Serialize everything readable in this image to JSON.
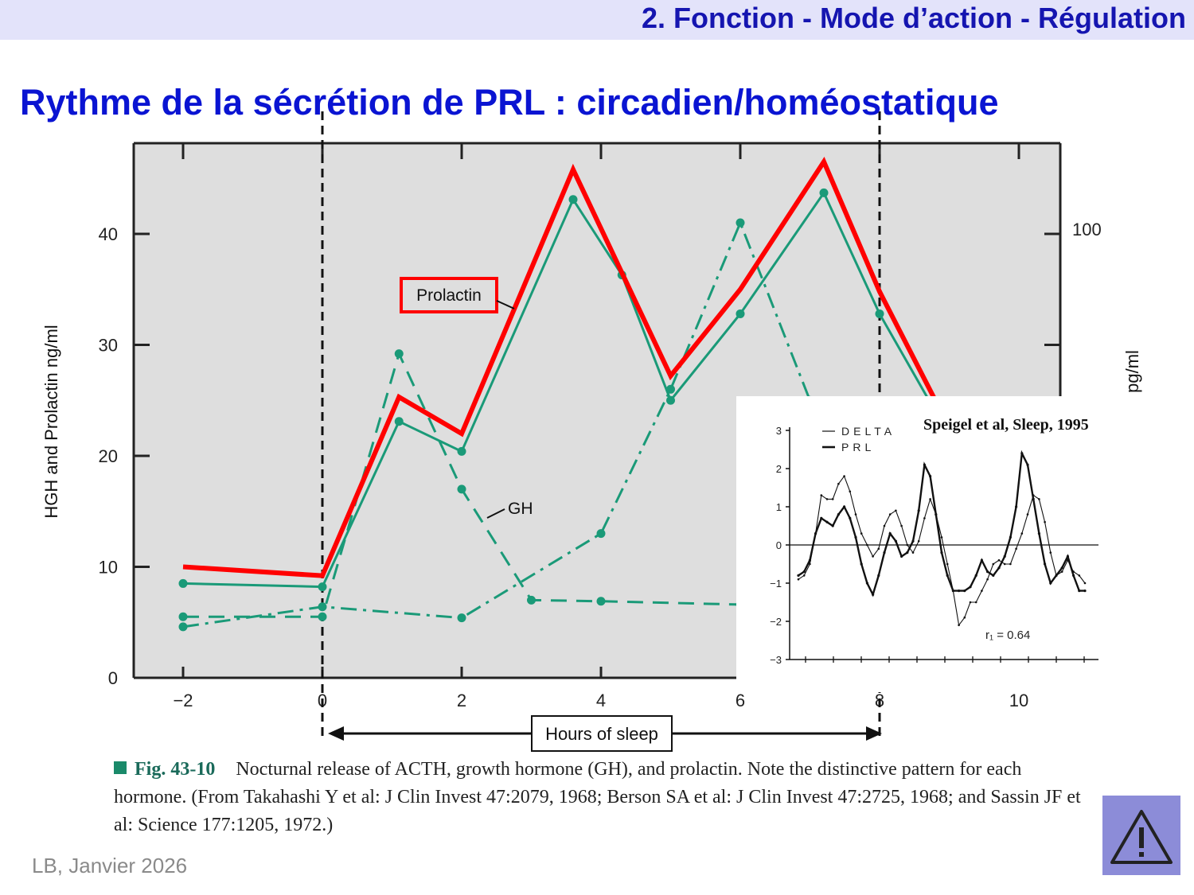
{
  "header": {
    "title": "2. Fonction - Mode d’action - Régulation"
  },
  "slide": {
    "title": "Rythme de la sécrétion de PRL : circadien/homéostatique",
    "footer": "LB, Janvier 2026"
  },
  "caption": {
    "fig_number": "Fig. 43-10",
    "text": "Nocturnal release of ACTH, growth hormone (GH), and prolactin. Note the distinctive pattern for each hormone. (From Takahashi Y et al: J Clin Invest 47:2079, 1968; Berson SA et al: J Clin Invest 47:2725, 1968; and Sassin JF et al: Science 177:1205, 1972.)"
  },
  "colors": {
    "teal": "#1a9a78",
    "red": "#ff0000",
    "panel": "#dedede",
    "title_blue": "#0a14d2"
  },
  "icons": {
    "warning": "warning-icon"
  },
  "chart_data": [
    {
      "type": "line",
      "xlim": [
        -2,
        11
      ],
      "ylim": [
        0,
        48
      ],
      "x_ticks": [
        -2,
        0,
        2,
        4,
        6,
        8,
        10
      ],
      "x_tick_labels": [
        "−2",
        "0",
        "2",
        "4",
        "6",
        "8",
        "10"
      ],
      "y_ticks": [
        0,
        10,
        20,
        30,
        40
      ],
      "y_tick_labels": [
        "0",
        "10",
        "20",
        "30",
        "40"
      ],
      "ylabel": "HGH and Prolactin ng/ml",
      "y2label": "ACTH pg/ml",
      "y2_tick_labels": [
        "100"
      ],
      "y2_ticks": [
        40
      ],
      "xlabel": "Hours of sleep",
      "sleep_window": [
        0,
        8
      ],
      "annotations": {
        "prolactin_label": "Prolactin",
        "gh_label": "GH"
      },
      "series": [
        {
          "name": "Prolactin",
          "style": "solid-thick",
          "color": "#ff0000",
          "x": [
            -2,
            0,
            1.1,
            2,
            3.6,
            5,
            6,
            7.2,
            8,
            8.8
          ],
          "y": [
            10,
            9.2,
            25.3,
            22,
            45.8,
            27.2,
            35,
            46.5,
            34.8,
            25
          ]
        },
        {
          "name": "",
          "style": "solid",
          "color": "#1a9a78",
          "x": [
            -2,
            0,
            1.1,
            2,
            3.6,
            4.3,
            5,
            6,
            7.2,
            8,
            8.8
          ],
          "y": [
            8.5,
            8.2,
            23.1,
            20.4,
            43.1,
            36.3,
            25,
            32.8,
            43.7,
            32.8,
            24
          ]
        },
        {
          "name": "GH",
          "style": "dashed",
          "color": "#1a9a78",
          "x": [
            -2,
            0,
            1.1,
            2,
            3,
            4,
            6
          ],
          "y": [
            5.5,
            5.5,
            29.2,
            17,
            7,
            6.9,
            6.6
          ]
        },
        {
          "name": "",
          "style": "dash-dot",
          "color": "#1a9a78",
          "x": [
            -2,
            0,
            2,
            4,
            5,
            6,
            7
          ],
          "y": [
            4.6,
            6.4,
            5.4,
            13,
            26,
            41,
            25
          ]
        }
      ]
    },
    {
      "type": "line",
      "citation": "Speigel et al, Sleep, 1995",
      "ylim": [
        -3,
        3
      ],
      "y_ticks": [
        -3,
        -2,
        -1,
        0,
        1,
        2,
        3
      ],
      "y_tick_labels": [
        "−3",
        "−2",
        "−1",
        "0",
        "1",
        "2",
        "3"
      ],
      "legend": [
        "DELTA",
        "PRL"
      ],
      "annotation": "r₁ = 0.64",
      "series": [
        {
          "name": "DELTA",
          "style": "thin",
          "y": [
            -0.9,
            -0.8,
            -0.5,
            0.3,
            1.3,
            1.2,
            1.2,
            1.6,
            1.8,
            1.4,
            0.8,
            0.3,
            0,
            -0.3,
            -0.1,
            0.5,
            0.8,
            0.9,
            0.5,
            0,
            -0.2,
            0.1,
            0.7,
            1.2,
            0.8,
            0.2,
            -0.5,
            -1.2,
            -2.1,
            -1.9,
            -1.5,
            -1.5,
            -1.2,
            -0.9,
            -0.5,
            -0.4,
            -0.5,
            -0.5,
            -0.1,
            0.3,
            0.8,
            1.3,
            1.2,
            0.6,
            -0.2,
            -0.8,
            -0.7,
            -0.4,
            -0.7,
            -0.8,
            -1.0
          ]
        },
        {
          "name": "PRL",
          "style": "thick",
          "y": [
            -0.8,
            -0.7,
            -0.4,
            0.3,
            0.7,
            0.6,
            0.5,
            0.8,
            1.0,
            0.7,
            0.2,
            -0.5,
            -1.0,
            -1.3,
            -0.8,
            -0.2,
            0.3,
            0.1,
            -0.3,
            -0.2,
            0.1,
            0.9,
            2.1,
            1.8,
            0.8,
            -0.2,
            -0.8,
            -1.2,
            -1.2,
            -1.2,
            -1.1,
            -0.8,
            -0.4,
            -0.7,
            -0.8,
            -0.6,
            -0.3,
            0.2,
            1.0,
            2.4,
            2.1,
            1.2,
            0.3,
            -0.5,
            -1.0,
            -0.8,
            -0.6,
            -0.3,
            -0.8,
            -1.2,
            -1.2
          ]
        }
      ]
    }
  ]
}
